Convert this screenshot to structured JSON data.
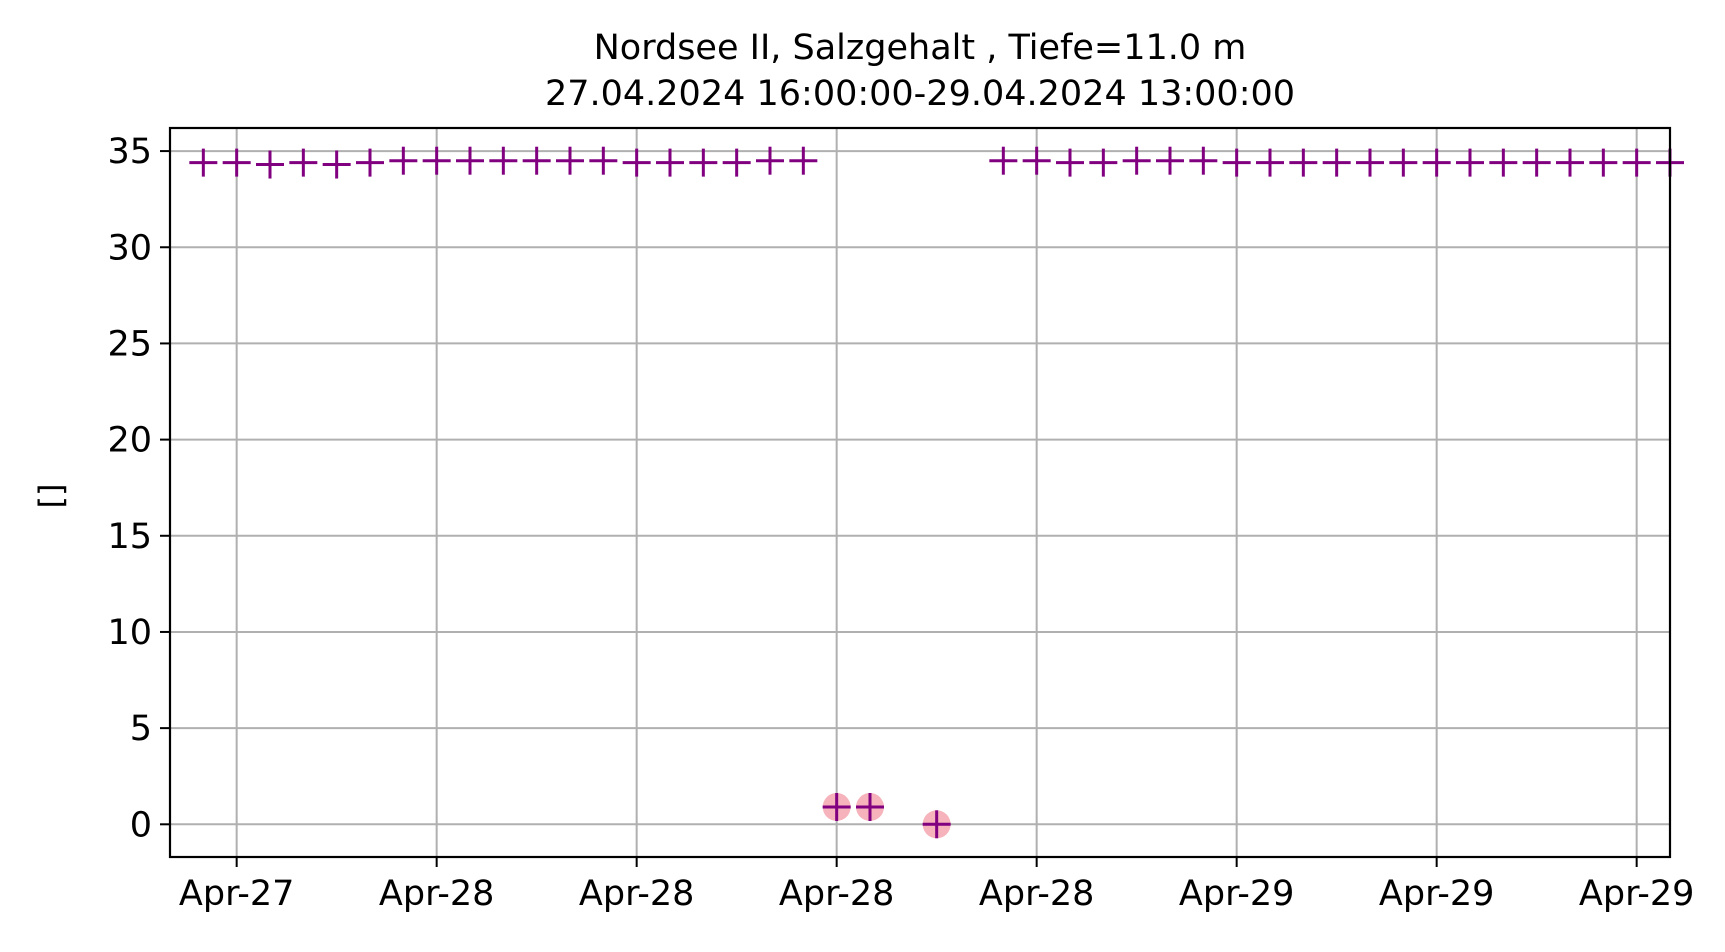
{
  "chart_data": {
    "type": "scatter",
    "title": "Nordsee II, Salzgehalt , Tiefe=11.0 m",
    "subtitle": "27.04.2024 16:00:00-29.04.2024 13:00:00",
    "ylabel": "[]",
    "xlabel": "",
    "x_range": [
      "2024-04-27 16:00:00",
      "2024-04-29 13:00:00"
    ],
    "ylim": [
      -1.7,
      36.2
    ],
    "grid": true,
    "x_ticks": [
      {
        "x": "2024-04-27 18:00",
        "label": "Apr-27"
      },
      {
        "x": "2024-04-28 00:00",
        "label": "Apr-28"
      },
      {
        "x": "2024-04-28 06:00",
        "label": "Apr-28"
      },
      {
        "x": "2024-04-28 12:00",
        "label": "Apr-28"
      },
      {
        "x": "2024-04-28 18:00",
        "label": "Apr-28"
      },
      {
        "x": "2024-04-29 00:00",
        "label": "Apr-29"
      },
      {
        "x": "2024-04-29 06:00",
        "label": "Apr-29"
      },
      {
        "x": "2024-04-29 12:00",
        "label": "Apr-29"
      }
    ],
    "y_ticks": [
      0,
      5,
      10,
      15,
      20,
      25,
      30,
      35
    ],
    "colors": {
      "marker": "#800080",
      "flag": "#f4a6b0",
      "grid": "#b0b0b0"
    },
    "series": [
      {
        "marker": "plus",
        "points": [
          {
            "x": "2024-04-27 17:00",
            "y": 34.4
          },
          {
            "x": "2024-04-27 18:00",
            "y": 34.4
          },
          {
            "x": "2024-04-27 19:00",
            "y": 34.3
          },
          {
            "x": "2024-04-27 20:00",
            "y": 34.4
          },
          {
            "x": "2024-04-27 21:00",
            "y": 34.3
          },
          {
            "x": "2024-04-27 22:00",
            "y": 34.4
          },
          {
            "x": "2024-04-27 23:00",
            "y": 34.5
          },
          {
            "x": "2024-04-28 00:00",
            "y": 34.5
          },
          {
            "x": "2024-04-28 01:00",
            "y": 34.5
          },
          {
            "x": "2024-04-28 02:00",
            "y": 34.5
          },
          {
            "x": "2024-04-28 03:00",
            "y": 34.5
          },
          {
            "x": "2024-04-28 04:00",
            "y": 34.5
          },
          {
            "x": "2024-04-28 05:00",
            "y": 34.5
          },
          {
            "x": "2024-04-28 06:00",
            "y": 34.4
          },
          {
            "x": "2024-04-28 07:00",
            "y": 34.4
          },
          {
            "x": "2024-04-28 08:00",
            "y": 34.4
          },
          {
            "x": "2024-04-28 09:00",
            "y": 34.4
          },
          {
            "x": "2024-04-28 10:00",
            "y": 34.5
          },
          {
            "x": "2024-04-28 11:00",
            "y": 34.5
          },
          {
            "x": "2024-04-28 12:00",
            "y": 0.9,
            "flagged": true
          },
          {
            "x": "2024-04-28 13:00",
            "y": 0.9,
            "flagged": true
          },
          {
            "x": "2024-04-28 15:00",
            "y": 0.0,
            "flagged": true
          },
          {
            "x": "2024-04-28 17:00",
            "y": 34.5
          },
          {
            "x": "2024-04-28 18:00",
            "y": 34.5
          },
          {
            "x": "2024-04-28 19:00",
            "y": 34.4
          },
          {
            "x": "2024-04-28 20:00",
            "y": 34.4
          },
          {
            "x": "2024-04-28 21:00",
            "y": 34.5
          },
          {
            "x": "2024-04-28 22:00",
            "y": 34.5
          },
          {
            "x": "2024-04-28 23:00",
            "y": 34.5
          },
          {
            "x": "2024-04-29 00:00",
            "y": 34.4
          },
          {
            "x": "2024-04-29 01:00",
            "y": 34.4
          },
          {
            "x": "2024-04-29 02:00",
            "y": 34.4
          },
          {
            "x": "2024-04-29 03:00",
            "y": 34.4
          },
          {
            "x": "2024-04-29 04:00",
            "y": 34.4
          },
          {
            "x": "2024-04-29 05:00",
            "y": 34.4
          },
          {
            "x": "2024-04-29 06:00",
            "y": 34.4
          },
          {
            "x": "2024-04-29 07:00",
            "y": 34.4
          },
          {
            "x": "2024-04-29 08:00",
            "y": 34.4
          },
          {
            "x": "2024-04-29 09:00",
            "y": 34.4
          },
          {
            "x": "2024-04-29 10:00",
            "y": 34.4
          },
          {
            "x": "2024-04-29 11:00",
            "y": 34.4
          },
          {
            "x": "2024-04-29 12:00",
            "y": 34.4
          },
          {
            "x": "2024-04-29 13:00",
            "y": 34.4
          }
        ]
      }
    ]
  }
}
